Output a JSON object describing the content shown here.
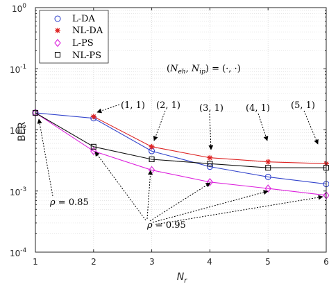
{
  "chart_data": {
    "type": "line",
    "xlabel_base": "N",
    "xlabel_sub": "r",
    "ylabel": "BER",
    "xlim": [
      1,
      6
    ],
    "ylim": [
      0.0001,
      1
    ],
    "yscale": "log",
    "grid": true,
    "legend_position": "top-left",
    "x_ticks": [
      "1",
      "2",
      "3",
      "4",
      "5",
      "6"
    ],
    "y_ticks": [
      {
        "base": "10",
        "exp": "0"
      },
      {
        "base": "10",
        "exp": "-1"
      },
      {
        "base": "10",
        "exp": "-2"
      },
      {
        "base": "10",
        "exp": "-3"
      },
      {
        "base": "10",
        "exp": "-4"
      }
    ],
    "series": [
      {
        "name": "L-DA",
        "marker": "circle",
        "color": "#3344cc",
        "x": [
          1,
          2,
          3,
          4,
          5,
          6
        ],
        "y": [
          0.019,
          0.0155,
          0.0045,
          0.0025,
          0.0017,
          0.0013
        ]
      },
      {
        "name": "NL-DA",
        "marker": "star",
        "color": "#dd2222",
        "x": [
          2,
          3,
          4,
          5,
          6
        ],
        "y": [
          0.0165,
          0.0053,
          0.0035,
          0.003,
          0.0028
        ]
      },
      {
        "name": "L-PS",
        "marker": "diamond",
        "color": "#dd22dd",
        "x": [
          1,
          2,
          3,
          4,
          5,
          6
        ],
        "y": [
          0.019,
          0.0045,
          0.0022,
          0.0014,
          0.0011,
          0.00085
        ]
      },
      {
        "name": "NL-PS",
        "marker": "square",
        "color": "#111111",
        "x": [
          1,
          2,
          3,
          4,
          5,
          6
        ],
        "y": [
          0.019,
          0.0053,
          0.0033,
          0.0028,
          0.0024,
          0.0024
        ]
      }
    ],
    "annotations": {
      "param_label": "(N_eh, N_ip) = (·, ·)",
      "param_label_parts": {
        "open": "(",
        "n1": "N",
        "s1": "eh",
        "comma": ", ",
        "n2": "N",
        "s2": "ip",
        "rest": ") = (·, ·)"
      },
      "pairs": [
        "(1, 1)",
        "(2, 1)",
        "(3, 1)",
        "(4, 1)",
        "(5, 1)"
      ],
      "rho_low": {
        "sym": "ρ",
        "text": " = 0.85"
      },
      "rho_high": {
        "sym": "ρ",
        "text": " = 0.95"
      }
    }
  }
}
